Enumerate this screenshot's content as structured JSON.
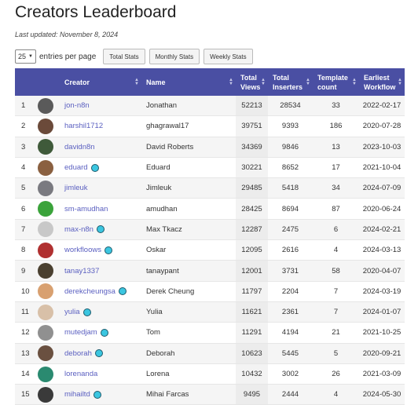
{
  "page": {
    "title": "Creators Leaderboard",
    "last_updated": "Last updated: November 8, 2024"
  },
  "controls": {
    "entries_value": "25",
    "entries_label": "entries per page",
    "buttons": [
      "Total Stats",
      "Monthly Stats",
      "Weekly Stats"
    ]
  },
  "table": {
    "headers": [
      "",
      "",
      "Creator",
      "Name",
      "Total Views",
      "Total Inserters",
      "Template count",
      "Earliest Workflow"
    ],
    "rows": [
      {
        "rank": "1",
        "creator": "jon-n8n",
        "badge": false,
        "name": "Jonathan",
        "views": "52213",
        "inserters": "28534",
        "templates": "33",
        "earliest": "2022-02-17",
        "avatar": "#5a5a5a"
      },
      {
        "rank": "2",
        "creator": "harshil1712",
        "badge": false,
        "name": "ghagrawal17",
        "views": "39751",
        "inserters": "9393",
        "templates": "186",
        "earliest": "2020-07-28",
        "avatar": "#6b4a3a"
      },
      {
        "rank": "3",
        "creator": "davidn8n",
        "badge": false,
        "name": "David Roberts",
        "views": "34369",
        "inserters": "9846",
        "templates": "13",
        "earliest": "2023-10-03",
        "avatar": "#3f5a3a"
      },
      {
        "rank": "4",
        "creator": "eduard",
        "badge": true,
        "name": "Eduard",
        "views": "30221",
        "inserters": "8652",
        "templates": "17",
        "earliest": "2021-10-04",
        "avatar": "#8a6040"
      },
      {
        "rank": "5",
        "creator": "jimleuk",
        "badge": false,
        "name": "Jimleuk",
        "views": "29485",
        "inserters": "5418",
        "templates": "34",
        "earliest": "2024-07-09",
        "avatar": "#7a7a80"
      },
      {
        "rank": "6",
        "creator": "sm-amudhan",
        "badge": false,
        "name": "amudhan",
        "views": "28425",
        "inserters": "8694",
        "templates": "87",
        "earliest": "2020-06-24",
        "avatar": "#3aa33a"
      },
      {
        "rank": "7",
        "creator": "max-n8n",
        "badge": true,
        "name": "Max Tkacz",
        "views": "12287",
        "inserters": "2475",
        "templates": "6",
        "earliest": "2024-02-21",
        "avatar": "#c8c8c8"
      },
      {
        "rank": "8",
        "creator": "workfloows",
        "badge": true,
        "name": "Oskar",
        "views": "12095",
        "inserters": "2616",
        "templates": "4",
        "earliest": "2024-03-13",
        "avatar": "#b03030"
      },
      {
        "rank": "9",
        "creator": "tanay1337",
        "badge": false,
        "name": "tanaypant",
        "views": "12001",
        "inserters": "3731",
        "templates": "58",
        "earliest": "2020-04-07",
        "avatar": "#4a4030"
      },
      {
        "rank": "10",
        "creator": "derekcheungsa",
        "badge": true,
        "name": "Derek Cheung",
        "views": "11797",
        "inserters": "2204",
        "templates": "7",
        "earliest": "2024-03-19",
        "avatar": "#d8a070"
      },
      {
        "rank": "11",
        "creator": "yulia",
        "badge": true,
        "name": "Yulia",
        "views": "11621",
        "inserters": "2361",
        "templates": "7",
        "earliest": "2024-01-07",
        "avatar": "#d8c0a8"
      },
      {
        "rank": "12",
        "creator": "mutedjam",
        "badge": true,
        "name": "Tom",
        "views": "11291",
        "inserters": "4194",
        "templates": "21",
        "earliest": "2021-10-25",
        "avatar": "#909090"
      },
      {
        "rank": "13",
        "creator": "deborah",
        "badge": true,
        "name": "Deborah",
        "views": "10623",
        "inserters": "5445",
        "templates": "5",
        "earliest": "2020-09-21",
        "avatar": "#6a5040"
      },
      {
        "rank": "14",
        "creator": "lorenanda",
        "badge": false,
        "name": "Lorena",
        "views": "10432",
        "inserters": "3002",
        "templates": "26",
        "earliest": "2021-03-09",
        "avatar": "#2a8a70"
      },
      {
        "rank": "15",
        "creator": "mihailtd",
        "badge": true,
        "name": "Mihai Farcas",
        "views": "9495",
        "inserters": "2444",
        "templates": "4",
        "earliest": "2024-05-30",
        "avatar": "#3a3a3a"
      }
    ]
  },
  "colors": {
    "header_bg": "#4a4fa3",
    "link": "#5a5fc0",
    "badge": "#3bc6e0"
  }
}
